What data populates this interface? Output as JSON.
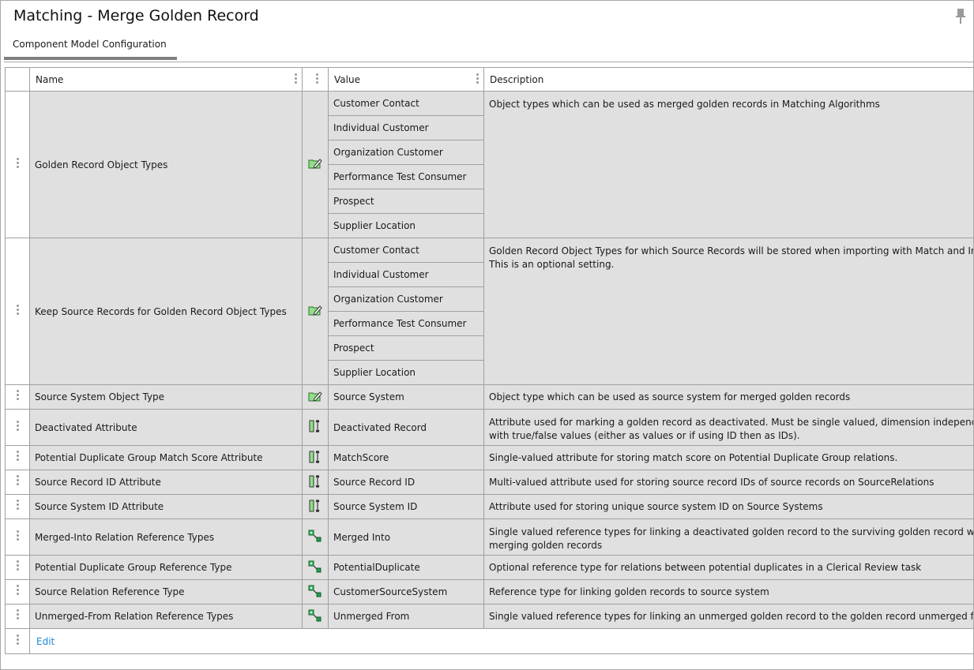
{
  "header": {
    "title": "Matching - Merge Golden Record",
    "pin_icon": "pin-icon"
  },
  "tabs": [
    {
      "label": "Component Model Configuration",
      "active": true
    }
  ],
  "table": {
    "columns": {
      "name": "Name",
      "value": "Value",
      "description": "Description"
    },
    "rows": [
      {
        "name": "Golden Record Object Types",
        "icon": "edit-object-types-icon",
        "values": [
          "Customer Contact",
          "Individual Customer",
          "Organization Customer",
          "Performance Test Consumer",
          "Prospect",
          "Supplier Location"
        ],
        "description": "Object types which can be used as merged golden records in Matching Algorithms"
      },
      {
        "name": "Keep Source Records for Golden Record Object Types",
        "icon": "edit-object-types-icon",
        "values": [
          "Customer Contact",
          "Individual Customer",
          "Organization Customer",
          "Performance Test Consumer",
          "Prospect",
          "Supplier Location"
        ],
        "description": "Golden Record Object Types for which Source Records will be stored when importing with Match and Importer. This is an optional setting."
      },
      {
        "name": "Source System Object Type",
        "icon": "edit-object-types-icon",
        "values": [
          "Source System"
        ],
        "description": "Object type which can be used as source system for merged golden records"
      },
      {
        "name": "Deactivated Attribute",
        "icon": "attribute-icon",
        "values": [
          "Deactivated Record"
        ],
        "description": "Attribute used for marking a golden record as deactivated. Must be single valued, dimension independent LOV with true/false values (either as values or if using ID then as IDs).",
        "tall": true
      },
      {
        "name": "Potential Duplicate Group Match Score Attribute",
        "icon": "attribute-icon",
        "values": [
          "MatchScore"
        ],
        "description": "Single-valued attribute for storing match score on Potential Duplicate Group relations."
      },
      {
        "name": "Source Record ID Attribute",
        "icon": "attribute-icon",
        "values": [
          "Source Record ID"
        ],
        "description": "Multi-valued attribute used for storing source record IDs of source records on SourceRelations"
      },
      {
        "name": "Source System ID Attribute",
        "icon": "attribute-icon",
        "values": [
          "Source System ID"
        ],
        "description": "Attribute used for storing unique source system ID on Source Systems"
      },
      {
        "name": "Merged-Into Relation Reference Types",
        "icon": "reference-type-icon",
        "values": [
          "Merged Into"
        ],
        "description": "Single valued reference types for linking a deactivated golden record to the surviving golden record when merging golden records",
        "tall": true
      },
      {
        "name": "Potential Duplicate Group Reference Type",
        "icon": "reference-type-icon",
        "values": [
          "PotentialDuplicate"
        ],
        "description": "Optional reference type for relations between potential duplicates in a Clerical Review task"
      },
      {
        "name": "Source Relation Reference Type",
        "icon": "reference-type-icon",
        "values": [
          "CustomerSourceSystem"
        ],
        "description": "Reference type for linking golden records to source system"
      },
      {
        "name": "Unmerged-From Relation Reference Types",
        "icon": "reference-type-icon",
        "values": [
          "Unmerged From"
        ],
        "description": "Single valued reference types for linking an unmerged golden record to the golden record unmerged from"
      }
    ],
    "edit_label": "Edit"
  }
}
